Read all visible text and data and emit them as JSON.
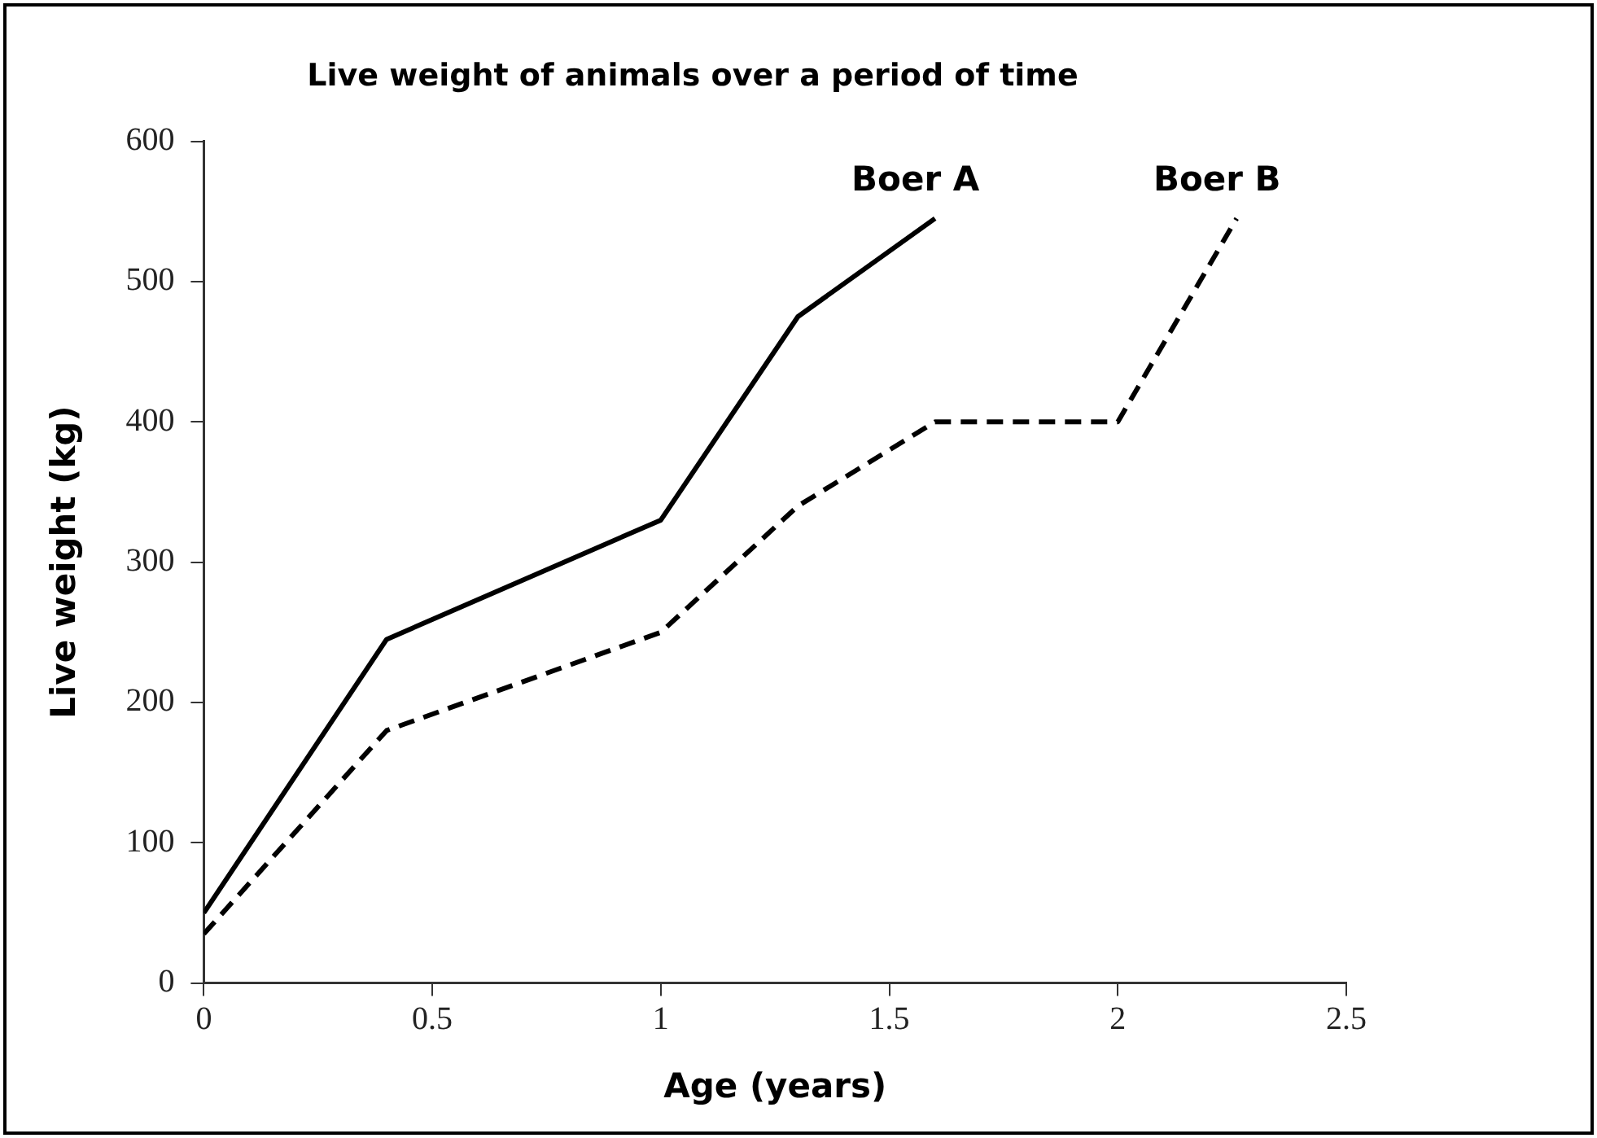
{
  "chart_data": {
    "type": "line",
    "title": "Live weight of animals over a period of time",
    "xlabel": "Age (years)",
    "ylabel": "Live weight (kg)",
    "xlim": [
      0,
      2.5
    ],
    "xticks": [
      0,
      0.5,
      1,
      1.5,
      2,
      2.5
    ],
    "ylim": [
      0,
      600
    ],
    "yticks": [
      0,
      100,
      200,
      300,
      400,
      500,
      600
    ],
    "grid": false,
    "legend": false,
    "marker": "none",
    "series": [
      {
        "name": "Boer A",
        "color": "#000000",
        "line_style": "solid",
        "x": [
          0,
          0.4,
          1,
          1.3,
          1.6
        ],
        "values": [
          50,
          245,
          330,
          475,
          545
        ]
      },
      {
        "name": "Boer B",
        "color": "#000000",
        "line_style": "dashed",
        "x": [
          0,
          0.4,
          1,
          1.3,
          1.6,
          2,
          2.26
        ],
        "values": [
          35,
          180,
          250,
          340,
          400,
          400,
          545
        ]
      }
    ]
  }
}
